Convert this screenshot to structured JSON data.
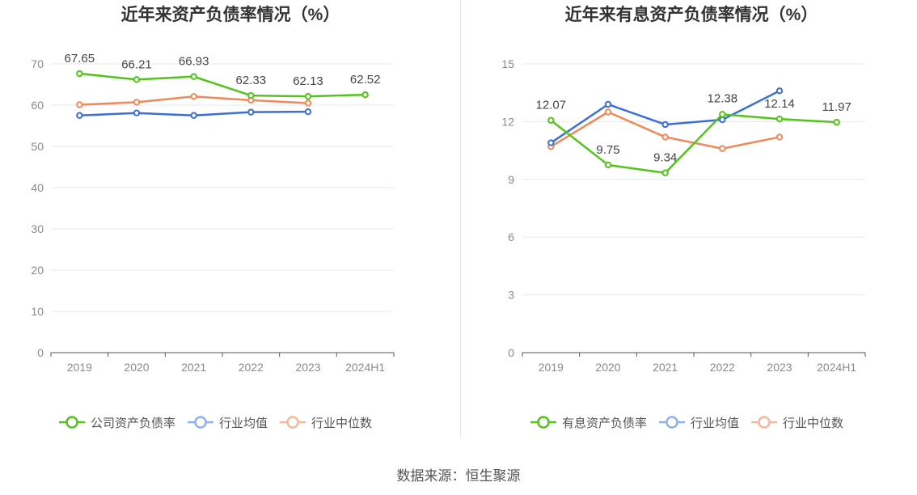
{
  "source": "数据来源：恒生聚源",
  "chart_data": [
    {
      "id": "left",
      "type": "line",
      "title": "近年来资产负债率情况（%）",
      "categories": [
        "2019",
        "2020",
        "2021",
        "2022",
        "2023",
        "2024H1"
      ],
      "ylim": [
        0,
        70
      ],
      "yticks": [
        0,
        10,
        20,
        30,
        40,
        50,
        60,
        70
      ],
      "grid": true,
      "legend_position": "bottom",
      "series": [
        {
          "name": "公司资产负债率",
          "color": "#52c41a",
          "values": [
            67.65,
            66.21,
            66.93,
            62.33,
            62.13,
            62.52
          ],
          "labels": [
            "67.65",
            "66.21",
            "66.93",
            "62.33",
            "62.13",
            "62.52"
          ]
        },
        {
          "name": "行业均值",
          "color": "#3a6fd8",
          "values": [
            57.5,
            58.1,
            57.5,
            58.3,
            58.4,
            null
          ]
        },
        {
          "name": "行业中位数",
          "color": "#f0885a",
          "values": [
            60.1,
            60.7,
            62.1,
            61.2,
            60.5,
            null
          ]
        }
      ]
    },
    {
      "id": "right",
      "type": "line",
      "title": "近年来有息资产负债率情况（%）",
      "categories": [
        "2019",
        "2020",
        "2021",
        "2022",
        "2023",
        "2024H1"
      ],
      "ylim": [
        0,
        15
      ],
      "yticks": [
        0,
        3,
        6,
        9,
        12,
        15
      ],
      "grid": true,
      "legend_position": "bottom",
      "series": [
        {
          "name": "有息资产负债率",
          "color": "#52c41a",
          "values": [
            12.07,
            9.75,
            9.34,
            12.38,
            12.14,
            11.97
          ],
          "labels": [
            "12.07",
            "9.75",
            "9.34",
            "12.38",
            "12.14",
            "11.97"
          ]
        },
        {
          "name": "行业均值",
          "color": "#3a6fd8",
          "values": [
            10.9,
            12.9,
            11.85,
            12.1,
            13.6,
            null
          ]
        },
        {
          "name": "行业中位数",
          "color": "#f0885a",
          "values": [
            10.7,
            12.5,
            11.2,
            10.6,
            11.2,
            null
          ]
        }
      ]
    }
  ]
}
